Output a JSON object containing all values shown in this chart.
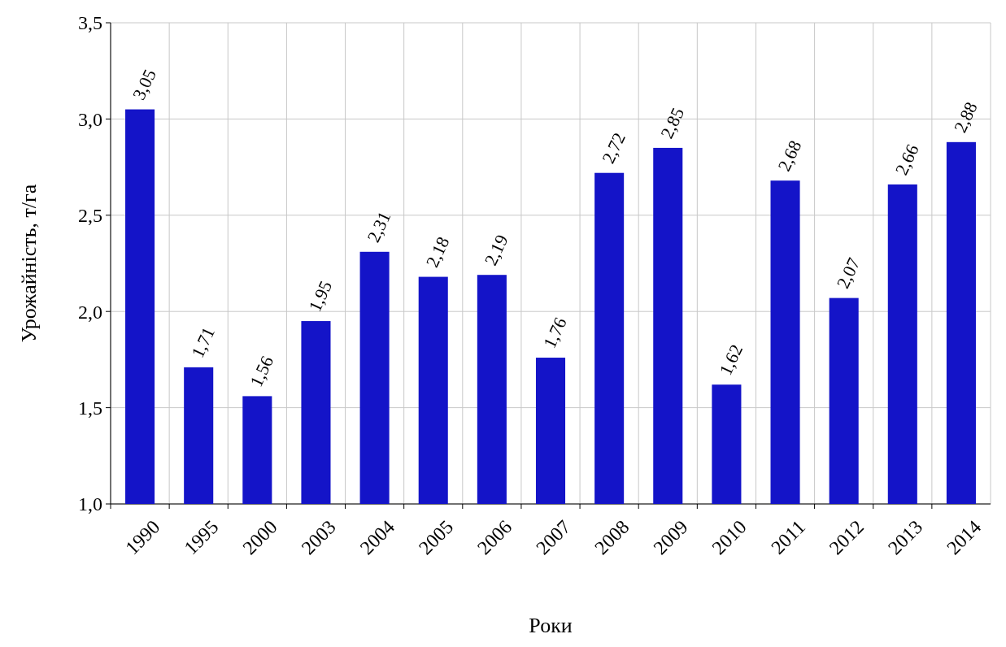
{
  "chart_data": {
    "type": "bar",
    "xlabel": "Роки",
    "ylabel": "Урожайність, т/га",
    "categories": [
      "1990",
      "1995",
      "2000",
      "2003",
      "2004",
      "2005",
      "2006",
      "2007",
      "2008",
      "2009",
      "2010",
      "2011",
      "2012",
      "2013",
      "2014"
    ],
    "values": [
      3.05,
      1.71,
      1.56,
      1.95,
      2.31,
      2.18,
      2.19,
      1.76,
      2.72,
      2.85,
      1.62,
      2.68,
      2.07,
      2.66,
      2.88
    ],
    "value_labels": [
      "3,05",
      "1,71",
      "1,56",
      "1,95",
      "2,31",
      "2,18",
      "2,19",
      "1,76",
      "2,72",
      "2,85",
      "1,62",
      "2,68",
      "2,07",
      "2,66",
      "2,88"
    ],
    "color": "#1414c8",
    "ylim": [
      1,
      3.5
    ],
    "yticks": [
      {
        "value": 1,
        "label": "1,0"
      },
      {
        "value": 1.5,
        "label": "1,5"
      },
      {
        "value": 2,
        "label": "2,0"
      },
      {
        "value": 2.5,
        "label": "2,5"
      },
      {
        "value": 3,
        "label": "3,0"
      },
      {
        "value": 3.5,
        "label": "3,5"
      }
    ],
    "grid": true
  }
}
